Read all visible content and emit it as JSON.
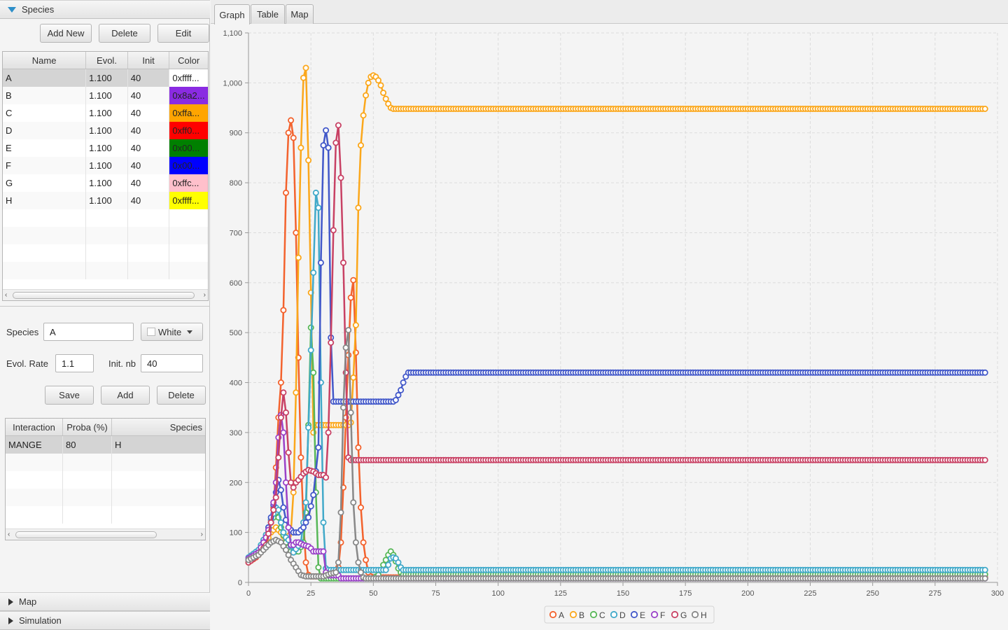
{
  "species_panel": {
    "title": "Species",
    "buttons": {
      "add_new": "Add New",
      "delete": "Delete",
      "edit": "Edit"
    },
    "table": {
      "columns": [
        "Name",
        "Evol.",
        "Init",
        "Color"
      ],
      "rows": [
        {
          "name": "A",
          "evol": "1.100",
          "init": "40",
          "color_text": "0xffff...",
          "color": "#ffffff"
        },
        {
          "name": "B",
          "evol": "1.100",
          "init": "40",
          "color_text": "0x8a2...",
          "color": "#8a2be2"
        },
        {
          "name": "C",
          "evol": "1.100",
          "init": "40",
          "color_text": "0xffa...",
          "color": "#ffa500"
        },
        {
          "name": "D",
          "evol": "1.100",
          "init": "40",
          "color_text": "0xff0...",
          "color": "#ff0000"
        },
        {
          "name": "E",
          "evol": "1.100",
          "init": "40",
          "color_text": "0x00...",
          "color": "#008000"
        },
        {
          "name": "F",
          "evol": "1.100",
          "init": "40",
          "color_text": "0x00...",
          "color": "#0000ff"
        },
        {
          "name": "G",
          "evol": "1.100",
          "init": "40",
          "color_text": "0xffc...",
          "color": "#ffc0cb"
        },
        {
          "name": "H",
          "evol": "1.100",
          "init": "40",
          "color_text": "0xffff...",
          "color": "#ffff00"
        }
      ]
    }
  },
  "form": {
    "species_label": "Species",
    "species_value": "A",
    "color_select": "White",
    "evol_rate_label": "Evol. Rate",
    "evol_rate_value": "1.1",
    "init_nb_label": "Init. nb",
    "init_nb_value": "40",
    "buttons": {
      "save": "Save",
      "add": "Add",
      "delete": "Delete"
    }
  },
  "interaction_table": {
    "columns": [
      "Interaction",
      "Proba (%)",
      "Species"
    ],
    "rows": [
      {
        "interaction": "MANGE",
        "proba": "80",
        "species": "H"
      }
    ]
  },
  "collapsed_panels": {
    "map": "Map",
    "simulation": "Simulation"
  },
  "tabs": [
    "Graph",
    "Table",
    "Map"
  ],
  "chart_data": {
    "type": "line",
    "title": "",
    "xlabel": "",
    "ylabel": "",
    "xlim": [
      0,
      300
    ],
    "ylim": [
      0,
      1100
    ],
    "x_ticks": [
      0,
      25,
      50,
      75,
      100,
      125,
      150,
      175,
      200,
      225,
      250,
      275,
      300
    ],
    "y_ticks": [
      0,
      100,
      200,
      300,
      400,
      500,
      600,
      700,
      800,
      900,
      1000,
      1100
    ],
    "y_tick_labels": [
      "0",
      "100",
      "200",
      "300",
      "400",
      "500",
      "600",
      "700",
      "800",
      "900",
      "1,000",
      "1,100"
    ],
    "grid": true,
    "legend_position": "bottom",
    "series": [
      {
        "name": "A",
        "color": "#f3622d",
        "points": [
          [
            0,
            40
          ],
          [
            3,
            50
          ],
          [
            6,
            70
          ],
          [
            8,
            100
          ],
          [
            10,
            150
          ],
          [
            11,
            230
          ],
          [
            12,
            330
          ],
          [
            13,
            400
          ],
          [
            14,
            545
          ],
          [
            15,
            780
          ],
          [
            16,
            900
          ],
          [
            17,
            925
          ],
          [
            18,
            890
          ],
          [
            19,
            700
          ],
          [
            20,
            450
          ],
          [
            21,
            250
          ],
          [
            22,
            120
          ],
          [
            23,
            40
          ],
          [
            24,
            15
          ],
          [
            25,
            12
          ],
          [
            35,
            12
          ],
          [
            36,
            30
          ],
          [
            37,
            80
          ],
          [
            38,
            190
          ],
          [
            39,
            330
          ],
          [
            40,
            455
          ],
          [
            41,
            570
          ],
          [
            42,
            605
          ],
          [
            43,
            460
          ],
          [
            44,
            270
          ],
          [
            45,
            150
          ],
          [
            46,
            80
          ],
          [
            47,
            45
          ],
          [
            48,
            20
          ],
          [
            49,
            12
          ],
          [
            50,
            10
          ],
          [
            295,
            10
          ]
        ]
      },
      {
        "name": "B",
        "color": "#fba71b",
        "points": [
          [
            0,
            40
          ],
          [
            4,
            55
          ],
          [
            7,
            80
          ],
          [
            9,
            100
          ],
          [
            11,
            110
          ],
          [
            13,
            100
          ],
          [
            15,
            85
          ],
          [
            17,
            100
          ],
          [
            18,
            180
          ],
          [
            19,
            380
          ],
          [
            20,
            650
          ],
          [
            21,
            870
          ],
          [
            22,
            1010
          ],
          [
            23,
            1030
          ],
          [
            24,
            845
          ],
          [
            25,
            580
          ],
          [
            26,
            300
          ],
          [
            27,
            315
          ],
          [
            40,
            315
          ],
          [
            41,
            320
          ],
          [
            42,
            410
          ],
          [
            43,
            515
          ],
          [
            44,
            750
          ],
          [
            45,
            875
          ],
          [
            46,
            935
          ],
          [
            47,
            975
          ],
          [
            48,
            1000
          ],
          [
            49,
            1012
          ],
          [
            50,
            1015
          ],
          [
            51,
            1012
          ],
          [
            52,
            1005
          ],
          [
            53,
            995
          ],
          [
            54,
            980
          ],
          [
            55,
            968
          ],
          [
            56,
            958
          ],
          [
            57,
            950
          ],
          [
            58,
            948
          ],
          [
            295,
            948
          ]
        ]
      },
      {
        "name": "C",
        "color": "#57b757",
        "points": [
          [
            0,
            45
          ],
          [
            4,
            60
          ],
          [
            7,
            90
          ],
          [
            9,
            120
          ],
          [
            11,
            140
          ],
          [
            12,
            130
          ],
          [
            13,
            110
          ],
          [
            14,
            95
          ],
          [
            15,
            80
          ],
          [
            16,
            70
          ],
          [
            17,
            62
          ],
          [
            20,
            62
          ],
          [
            22,
            80
          ],
          [
            23,
            140
          ],
          [
            24,
            315
          ],
          [
            25,
            510
          ],
          [
            26,
            420
          ],
          [
            27,
            180
          ],
          [
            28,
            30
          ],
          [
            29,
            8
          ],
          [
            50,
            8
          ],
          [
            52,
            15
          ],
          [
            54,
            35
          ],
          [
            56,
            55
          ],
          [
            57,
            62
          ],
          [
            58,
            55
          ],
          [
            59,
            42
          ],
          [
            60,
            28
          ],
          [
            61,
            20
          ],
          [
            62,
            16
          ],
          [
            65,
            16
          ],
          [
            295,
            16
          ]
        ]
      },
      {
        "name": "D",
        "color": "#41a9c9",
        "points": [
          [
            0,
            50
          ],
          [
            4,
            65
          ],
          [
            7,
            95
          ],
          [
            9,
            125
          ],
          [
            11,
            150
          ],
          [
            12,
            145
          ],
          [
            13,
            120
          ],
          [
            14,
            100
          ],
          [
            15,
            90
          ],
          [
            16,
            85
          ],
          [
            18,
            60
          ],
          [
            21,
            80
          ],
          [
            23,
            160
          ],
          [
            24,
            310
          ],
          [
            26,
            620
          ],
          [
            27,
            780
          ],
          [
            28,
            750
          ],
          [
            29,
            400
          ],
          [
            30,
            120
          ],
          [
            31,
            28
          ],
          [
            32,
            25
          ],
          [
            55,
            25
          ],
          [
            56,
            35
          ],
          [
            57,
            48
          ],
          [
            58,
            50
          ],
          [
            59,
            48
          ],
          [
            60,
            40
          ],
          [
            61,
            30
          ],
          [
            62,
            25
          ],
          [
            295,
            25
          ]
        ]
      },
      {
        "name": "E",
        "color": "#4258c9",
        "points": [
          [
            0,
            45
          ],
          [
            4,
            60
          ],
          [
            7,
            90
          ],
          [
            9,
            130
          ],
          [
            11,
            180
          ],
          [
            12,
            205
          ],
          [
            13,
            185
          ],
          [
            14,
            150
          ],
          [
            15,
            125
          ],
          [
            16,
            110
          ],
          [
            18,
            100
          ],
          [
            20,
            100
          ],
          [
            22,
            110
          ],
          [
            24,
            130
          ],
          [
            26,
            175
          ],
          [
            28,
            270
          ],
          [
            29,
            640
          ],
          [
            30,
            875
          ],
          [
            31,
            905
          ],
          [
            32,
            870
          ],
          [
            33,
            490
          ],
          [
            34,
            362
          ],
          [
            58,
            362
          ],
          [
            59,
            365
          ],
          [
            60,
            375
          ],
          [
            61,
            385
          ],
          [
            62,
            400
          ],
          [
            63,
            412
          ],
          [
            64,
            420
          ],
          [
            295,
            420
          ]
        ]
      },
      {
        "name": "F",
        "color": "#9a42c8",
        "points": [
          [
            0,
            48
          ],
          [
            4,
            60
          ],
          [
            7,
            90
          ],
          [
            9,
            120
          ],
          [
            11,
            200
          ],
          [
            12,
            290
          ],
          [
            13,
            335
          ],
          [
            14,
            300
          ],
          [
            15,
            200
          ],
          [
            16,
            110
          ],
          [
            17,
            75
          ],
          [
            18,
            75
          ],
          [
            19,
            80
          ],
          [
            20,
            80
          ],
          [
            22,
            75
          ],
          [
            24,
            72
          ],
          [
            25,
            68
          ],
          [
            26,
            62
          ],
          [
            30,
            62
          ],
          [
            31,
            20
          ],
          [
            32,
            14
          ],
          [
            36,
            14
          ],
          [
            37,
            8
          ],
          [
            295,
            8
          ]
        ]
      },
      {
        "name": "G",
        "color": "#c84164",
        "points": [
          [
            0,
            40
          ],
          [
            4,
            55
          ],
          [
            7,
            75
          ],
          [
            9,
            120
          ],
          [
            11,
            170
          ],
          [
            12,
            250
          ],
          [
            13,
            330
          ],
          [
            14,
            380
          ],
          [
            15,
            340
          ],
          [
            16,
            260
          ],
          [
            17,
            200
          ],
          [
            18,
            190
          ],
          [
            19,
            200
          ],
          [
            20,
            205
          ],
          [
            22,
            218
          ],
          [
            24,
            225
          ],
          [
            26,
            222
          ],
          [
            28,
            215
          ],
          [
            30,
            215
          ],
          [
            31,
            210
          ],
          [
            32,
            300
          ],
          [
            33,
            480
          ],
          [
            34,
            705
          ],
          [
            35,
            880
          ],
          [
            36,
            915
          ],
          [
            37,
            810
          ],
          [
            38,
            640
          ],
          [
            39,
            420
          ],
          [
            40,
            250
          ],
          [
            41,
            245
          ],
          [
            295,
            245
          ]
        ]
      },
      {
        "name": "H",
        "color": "#888888",
        "points": [
          [
            0,
            45
          ],
          [
            4,
            55
          ],
          [
            7,
            70
          ],
          [
            9,
            80
          ],
          [
            11,
            85
          ],
          [
            13,
            80
          ],
          [
            15,
            65
          ],
          [
            17,
            45
          ],
          [
            19,
            30
          ],
          [
            21,
            15
          ],
          [
            23,
            12
          ],
          [
            30,
            12
          ],
          [
            31,
            14
          ],
          [
            33,
            18
          ],
          [
            35,
            20
          ],
          [
            36,
            40
          ],
          [
            37,
            140
          ],
          [
            38,
            350
          ],
          [
            39,
            470
          ],
          [
            40,
            505
          ],
          [
            41,
            340
          ],
          [
            42,
            160
          ],
          [
            43,
            80
          ],
          [
            44,
            40
          ],
          [
            45,
            20
          ],
          [
            46,
            10
          ],
          [
            47,
            8
          ],
          [
            295,
            8
          ]
        ]
      }
    ]
  }
}
